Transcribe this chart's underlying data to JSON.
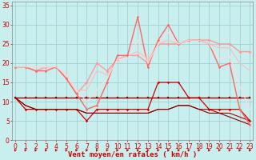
{
  "x": [
    0,
    1,
    2,
    3,
    4,
    5,
    6,
    7,
    8,
    9,
    10,
    11,
    12,
    13,
    14,
    15,
    16,
    17,
    18,
    19,
    20,
    21,
    22,
    23
  ],
  "series": [
    {
      "color": "#990000",
      "linewidth": 1.0,
      "marker": "s",
      "markersize": 2.0,
      "values": [
        11,
        11,
        11,
        11,
        11,
        11,
        11,
        11,
        11,
        11,
        11,
        11,
        11,
        11,
        11,
        11,
        11,
        11,
        11,
        11,
        11,
        11,
        11,
        11
      ]
    },
    {
      "color": "#cc0000",
      "linewidth": 0.9,
      "marker": "P",
      "markersize": 2.0,
      "values": [
        11,
        8,
        8,
        8,
        8,
        8,
        8,
        5,
        8,
        8,
        8,
        8,
        8,
        8,
        15,
        15,
        15,
        11,
        11,
        8,
        8,
        8,
        8,
        5
      ]
    },
    {
      "color": "#aa0000",
      "linewidth": 0.8,
      "marker": null,
      "markersize": 0,
      "values": [
        11,
        9,
        8,
        8,
        8,
        8,
        8,
        7,
        7,
        7,
        7,
        7,
        7,
        7,
        8,
        8,
        9,
        9,
        8,
        8,
        7,
        7,
        6,
        5
      ]
    },
    {
      "color": "#880000",
      "linewidth": 0.8,
      "marker": null,
      "markersize": 0,
      "values": [
        11,
        9,
        8,
        8,
        8,
        8,
        8,
        7,
        7,
        7,
        7,
        7,
        7,
        7,
        8,
        8,
        9,
        9,
        8,
        7,
        7,
        6,
        5,
        4
      ]
    },
    {
      "color": "#ff9999",
      "linewidth": 1.0,
      "marker": "o",
      "markersize": 2.0,
      "values": [
        19,
        19,
        18,
        19,
        19,
        16,
        12,
        15,
        20,
        18,
        21,
        22,
        22,
        20,
        25,
        25,
        25,
        26,
        26,
        26,
        25,
        25,
        23,
        23
      ]
    },
    {
      "color": "#ffbbbb",
      "linewidth": 0.8,
      "marker": null,
      "markersize": 0,
      "values": [
        19,
        19,
        19,
        19,
        19,
        17,
        13,
        13,
        18,
        17,
        21,
        22,
        23,
        21,
        25,
        26,
        25,
        26,
        26,
        25,
        24,
        24,
        20,
        18
      ]
    },
    {
      "color": "#ff6666",
      "linewidth": 1.0,
      "marker": "P",
      "markersize": 2.0,
      "values": [
        19,
        19,
        18,
        18,
        19,
        16,
        12,
        8,
        9,
        15,
        22,
        22,
        32,
        19,
        26,
        30,
        25,
        26,
        26,
        25,
        19,
        20,
        8,
        4
      ]
    },
    {
      "color": "#ffdddd",
      "linewidth": 0.8,
      "marker": null,
      "markersize": 0,
      "values": [
        19,
        19,
        19,
        19,
        19,
        17,
        13,
        10,
        13,
        16,
        21,
        21,
        26,
        20,
        25,
        28,
        25,
        26,
        26,
        25,
        21,
        22,
        14,
        8
      ]
    }
  ],
  "xlim": [
    -0.3,
    23.3
  ],
  "ylim": [
    0,
    36
  ],
  "yticks": [
    0,
    5,
    10,
    15,
    20,
    25,
    30,
    35
  ],
  "xticks": [
    0,
    1,
    2,
    3,
    4,
    5,
    6,
    7,
    8,
    9,
    10,
    11,
    12,
    13,
    14,
    15,
    16,
    17,
    18,
    19,
    20,
    21,
    22,
    23
  ],
  "xlabel": "Vent moyen/en rafales ( km/h )",
  "bg_color": "#c8eeee",
  "grid_color": "#99cccc",
  "axis_color": "#cc0000",
  "text_color": "#cc0000",
  "xlabel_fontsize": 6.5,
  "tick_fontsize": 5.5,
  "arrow_color": "#cc0000"
}
